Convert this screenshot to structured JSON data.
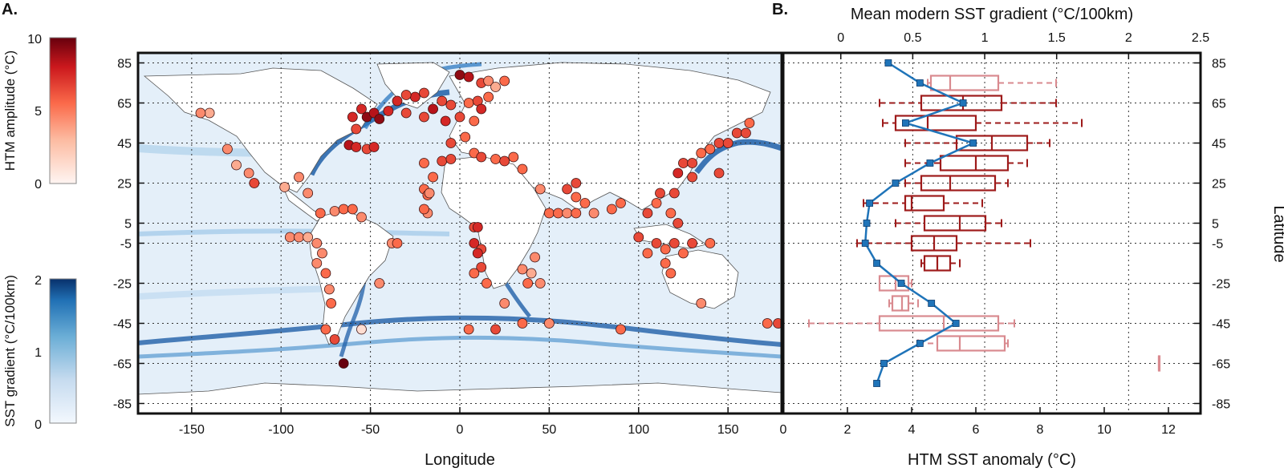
{
  "panel_a_letter": "A.",
  "panel_b_letter": "B.",
  "colors": {
    "htm_scale": [
      "#fff5f2",
      "#fcbba1",
      "#fb6a4a",
      "#cb181d",
      "#67000d"
    ],
    "sst_scale": [
      "#f3f8fe",
      "#c6dbef",
      "#6baed6",
      "#2171b5",
      "#08306b"
    ],
    "box_dark": "#9e1b1b",
    "box_light": "#d98a8f",
    "gradient_line": "#1f74b9",
    "land": "#ffffff",
    "ocean": "#e4eff9"
  },
  "colorbar_htm": {
    "label": "HTM amplitude (°C)",
    "ticks": [
      "10",
      "5",
      "0"
    ],
    "min": 0,
    "max": 10
  },
  "colorbar_sst": {
    "label": "SST gradient (°C/100km)",
    "ticks": [
      "2",
      "1",
      "0"
    ],
    "min": 0,
    "max": 2
  },
  "chart_data": [
    {
      "type": "scatter",
      "xlabel": "Longitude",
      "ylabel": "",
      "xlim": [
        -180,
        180
      ],
      "ylim": [
        -90,
        90
      ],
      "xticks": [
        "-150",
        "-100",
        "-50",
        "0",
        "50",
        "100",
        "150"
      ],
      "yticks": [
        "85",
        "65",
        "45",
        "25",
        "5",
        "-5",
        "-25",
        "-45",
        "-65",
        "-85"
      ],
      "grid": true,
      "points": [
        {
          "lon": 0,
          "lat": 79,
          "htm": 9
        },
        {
          "lon": 5,
          "lat": 78,
          "htm": 8
        },
        {
          "lon": 12,
          "lat": 75,
          "htm": 6
        },
        {
          "lon": 16,
          "lat": 76,
          "htm": 4
        },
        {
          "lon": 20,
          "lat": 73,
          "htm": 3
        },
        {
          "lon": 25,
          "lat": 76,
          "htm": 5
        },
        {
          "lon": -20,
          "lat": 70,
          "htm": 6
        },
        {
          "lon": -25,
          "lat": 68,
          "htm": 7
        },
        {
          "lon": -30,
          "lat": 69,
          "htm": 6
        },
        {
          "lon": -35,
          "lat": 66,
          "htm": 7
        },
        {
          "lon": -10,
          "lat": 66,
          "htm": 6
        },
        {
          "lon": -15,
          "lat": 62,
          "htm": 8
        },
        {
          "lon": -5,
          "lat": 64,
          "htm": 6
        },
        {
          "lon": 5,
          "lat": 65,
          "htm": 5
        },
        {
          "lon": 10,
          "lat": 66,
          "htm": 6
        },
        {
          "lon": 12,
          "lat": 62,
          "htm": 7
        },
        {
          "lon": 16,
          "lat": 68,
          "htm": 5
        },
        {
          "lon": -55,
          "lat": 62,
          "htm": 7
        },
        {
          "lon": -52,
          "lat": 58,
          "htm": 9
        },
        {
          "lon": -48,
          "lat": 60,
          "htm": 8
        },
        {
          "lon": -45,
          "lat": 57,
          "htm": 9
        },
        {
          "lon": -60,
          "lat": 58,
          "htm": 7
        },
        {
          "lon": -58,
          "lat": 52,
          "htm": 6
        },
        {
          "lon": 0,
          "lat": 58,
          "htm": 6
        },
        {
          "lon": -8,
          "lat": 56,
          "htm": 7
        },
        {
          "lon": 8,
          "lat": 56,
          "htm": 5
        },
        {
          "lon": -20,
          "lat": 58,
          "htm": 6
        },
        {
          "lon": -30,
          "lat": 60,
          "htm": 6
        },
        {
          "lon": -40,
          "lat": 61,
          "htm": 7
        },
        {
          "lon": -62,
          "lat": 44,
          "htm": 8
        },
        {
          "lon": -58,
          "lat": 43,
          "htm": 7
        },
        {
          "lon": -52,
          "lat": 42,
          "htm": 6
        },
        {
          "lon": -48,
          "lat": 43,
          "htm": 7
        },
        {
          "lon": -140,
          "lat": 60,
          "htm": 3
        },
        {
          "lon": -145,
          "lat": 60,
          "htm": 4
        },
        {
          "lon": -130,
          "lat": 42,
          "htm": 4
        },
        {
          "lon": -125,
          "lat": 34,
          "htm": 3
        },
        {
          "lon": -118,
          "lat": 30,
          "htm": 4
        },
        {
          "lon": -115,
          "lat": 25,
          "htm": 6
        },
        {
          "lon": -90,
          "lat": 28,
          "htm": 4
        },
        {
          "lon": -98,
          "lat": 23,
          "htm": 3
        },
        {
          "lon": -85,
          "lat": 20,
          "htm": 4
        },
        {
          "lon": -78,
          "lat": 10,
          "htm": 5
        },
        {
          "lon": -70,
          "lat": 11,
          "htm": 4
        },
        {
          "lon": -65,
          "lat": 12,
          "htm": 5
        },
        {
          "lon": -60,
          "lat": 12,
          "htm": 5
        },
        {
          "lon": -55,
          "lat": 8,
          "htm": 4
        },
        {
          "lon": -95,
          "lat": -2,
          "htm": 4
        },
        {
          "lon": -90,
          "lat": -2,
          "htm": 4
        },
        {
          "lon": -85,
          "lat": -2,
          "htm": 3
        },
        {
          "lon": -80,
          "lat": -5,
          "htm": 4
        },
        {
          "lon": -77,
          "lat": -10,
          "htm": 4
        },
        {
          "lon": -80,
          "lat": -15,
          "htm": 4
        },
        {
          "lon": -75,
          "lat": -20,
          "htm": 5
        },
        {
          "lon": -73,
          "lat": -28,
          "htm": 4
        },
        {
          "lon": -72,
          "lat": -35,
          "htm": 5
        },
        {
          "lon": -75,
          "lat": -48,
          "htm": 5
        },
        {
          "lon": -70,
          "lat": -53,
          "htm": 6
        },
        {
          "lon": -38,
          "lat": -5,
          "htm": 4
        },
        {
          "lon": -35,
          "lat": -5,
          "htm": 5
        },
        {
          "lon": -45,
          "lat": -25,
          "htm": 4
        },
        {
          "lon": -65,
          "lat": -65,
          "htm": 10
        },
        {
          "lon": -20,
          "lat": 35,
          "htm": 5
        },
        {
          "lon": -15,
          "lat": 28,
          "htm": 5
        },
        {
          "lon": -10,
          "lat": 36,
          "htm": 6
        },
        {
          "lon": -5,
          "lat": 37,
          "htm": 6
        },
        {
          "lon": 8,
          "lat": 40,
          "htm": 5
        },
        {
          "lon": 12,
          "lat": 38,
          "htm": 6
        },
        {
          "lon": 20,
          "lat": 37,
          "htm": 5
        },
        {
          "lon": 25,
          "lat": 36,
          "htm": 6
        },
        {
          "lon": 30,
          "lat": 38,
          "htm": 5
        },
        {
          "lon": 35,
          "lat": 32,
          "htm": 5
        },
        {
          "lon": 3,
          "lat": 48,
          "htm": 5
        },
        {
          "lon": -5,
          "lat": 45,
          "htm": 6
        },
        {
          "lon": -20,
          "lat": 22,
          "htm": 5
        },
        {
          "lon": -18,
          "lat": 19,
          "htm": 5
        },
        {
          "lon": -17,
          "lat": 20,
          "htm": 4
        },
        {
          "lon": -18,
          "lat": 10,
          "htm": 4
        },
        {
          "lon": -20,
          "lat": 12,
          "htm": 5
        },
        {
          "lon": 8,
          "lat": 3,
          "htm": 6
        },
        {
          "lon": 10,
          "lat": 3,
          "htm": 7
        },
        {
          "lon": 8,
          "lat": -5,
          "htm": 7
        },
        {
          "lon": 12,
          "lat": -8,
          "htm": 6
        },
        {
          "lon": 10,
          "lat": -10,
          "htm": 7
        },
        {
          "lon": 12,
          "lat": -17,
          "htm": 6
        },
        {
          "lon": 15,
          "lat": -25,
          "htm": 5
        },
        {
          "lon": 8,
          "lat": -20,
          "htm": 5
        },
        {
          "lon": 25,
          "lat": -35,
          "htm": 4
        },
        {
          "lon": 35,
          "lat": -45,
          "htm": 5
        },
        {
          "lon": 20,
          "lat": -48,
          "htm": 6
        },
        {
          "lon": 5,
          "lat": -48,
          "htm": 5
        },
        {
          "lon": 50,
          "lat": -45,
          "htm": 4
        },
        {
          "lon": 90,
          "lat": -48,
          "htm": 5
        },
        {
          "lon": -55,
          "lat": -48,
          "htm": 1
        },
        {
          "lon": 35,
          "lat": -18,
          "htm": 4
        },
        {
          "lon": 40,
          "lat": -20,
          "htm": 3
        },
        {
          "lon": 42,
          "lat": -12,
          "htm": 4
        },
        {
          "lon": 38,
          "lat": -25,
          "htm": 5
        },
        {
          "lon": 45,
          "lat": -25,
          "htm": 4
        },
        {
          "lon": 50,
          "lat": 10,
          "htm": 5
        },
        {
          "lon": 55,
          "lat": 10,
          "htm": 5
        },
        {
          "lon": 60,
          "lat": 10,
          "htm": 4
        },
        {
          "lon": 65,
          "lat": 10,
          "htm": 5
        },
        {
          "lon": 45,
          "lat": 22,
          "htm": 4
        },
        {
          "lon": 60,
          "lat": 22,
          "htm": 6
        },
        {
          "lon": 65,
          "lat": 18,
          "htm": 5
        },
        {
          "lon": 70,
          "lat": 15,
          "htm": 5
        },
        {
          "lon": 75,
          "lat": 10,
          "htm": 4
        },
        {
          "lon": 90,
          "lat": 15,
          "htm": 5
        },
        {
          "lon": 85,
          "lat": 12,
          "htm": 5
        },
        {
          "lon": 65,
          "lat": 25,
          "htm": 6
        },
        {
          "lon": 105,
          "lat": 10,
          "htm": 6
        },
        {
          "lon": 110,
          "lat": 15,
          "htm": 5
        },
        {
          "lon": 112,
          "lat": 20,
          "htm": 6
        },
        {
          "lon": 120,
          "lat": 20,
          "htm": 6
        },
        {
          "lon": 118,
          "lat": 10,
          "htm": 5
        },
        {
          "lon": 122,
          "lat": 5,
          "htm": 6
        },
        {
          "lon": 110,
          "lat": -5,
          "htm": 6
        },
        {
          "lon": 115,
          "lat": -8,
          "htm": 5
        },
        {
          "lon": 120,
          "lat": -5,
          "htm": 6
        },
        {
          "lon": 125,
          "lat": -10,
          "htm": 5
        },
        {
          "lon": 130,
          "lat": -5,
          "htm": 6
        },
        {
          "lon": 100,
          "lat": -2,
          "htm": 6
        },
        {
          "lon": 105,
          "lat": -10,
          "htm": 5
        },
        {
          "lon": 118,
          "lat": -20,
          "htm": 5
        },
        {
          "lon": 115,
          "lat": -15,
          "htm": 5
        },
        {
          "lon": 140,
          "lat": -5,
          "htm": 5
        },
        {
          "lon": 135,
          "lat": -35,
          "htm": 4
        },
        {
          "lon": 125,
          "lat": 35,
          "htm": 6
        },
        {
          "lon": 130,
          "lat": 35,
          "htm": 6
        },
        {
          "lon": 135,
          "lat": 40,
          "htm": 5
        },
        {
          "lon": 140,
          "lat": 42,
          "htm": 5
        },
        {
          "lon": 145,
          "lat": 45,
          "htm": 6
        },
        {
          "lon": 150,
          "lat": 45,
          "htm": 6
        },
        {
          "lon": 155,
          "lat": 50,
          "htm": 6
        },
        {
          "lon": 160,
          "lat": 50,
          "htm": 6
        },
        {
          "lon": 162,
          "lat": 55,
          "htm": 5
        },
        {
          "lon": 122,
          "lat": 30,
          "htm": 7
        },
        {
          "lon": 130,
          "lat": 28,
          "htm": 6
        },
        {
          "lon": 145,
          "lat": 30,
          "htm": 6
        },
        {
          "lon": 172,
          "lat": -45,
          "htm": 5
        },
        {
          "lon": 178,
          "lat": -45,
          "htm": 6
        }
      ]
    },
    {
      "type": "box",
      "xlabel": "HTM SST anomaly (°C)",
      "ylabel": "Latitude",
      "xlim": [
        0,
        13
      ],
      "ylim": [
        -90,
        90
      ],
      "xticks": [
        "0",
        "2",
        "4",
        "6",
        "8",
        "10",
        "12"
      ],
      "yticks": [
        "85",
        "65",
        "45",
        "25",
        "5",
        "-5",
        "-25",
        "-45",
        "-65",
        "-85"
      ],
      "grid": true,
      "boxes": [
        {
          "lat": 75,
          "min": 4.5,
          "q1": 4.6,
          "median": 5.2,
          "q3": 6.7,
          "max": 8.5,
          "tone": "light"
        },
        {
          "lat": 65,
          "min": 3.0,
          "q1": 4.3,
          "median": 5.6,
          "q3": 6.8,
          "max": 8.5,
          "tone": "dark"
        },
        {
          "lat": 55,
          "min": 3.1,
          "q1": 3.5,
          "median": 4.5,
          "q3": 6.0,
          "max": 9.3,
          "tone": "dark"
        },
        {
          "lat": 45,
          "min": 3.8,
          "q1": 5.4,
          "median": 6.5,
          "q3": 7.6,
          "max": 8.3,
          "tone": "dark"
        },
        {
          "lat": 35,
          "min": 3.8,
          "q1": 4.9,
          "median": 6.0,
          "q3": 7.0,
          "max": 7.6,
          "tone": "dark"
        },
        {
          "lat": 25,
          "min": 3.8,
          "q1": 4.3,
          "median": 5.2,
          "q3": 6.6,
          "max": 7.0,
          "tone": "dark"
        },
        {
          "lat": 15,
          "min": 2.5,
          "q1": 3.8,
          "median": 4.0,
          "q3": 5.0,
          "max": 6.2,
          "tone": "dark"
        },
        {
          "lat": 5,
          "min": 3.5,
          "q1": 4.4,
          "median": 5.5,
          "q3": 6.3,
          "max": 6.8,
          "tone": "dark"
        },
        {
          "lat": -5,
          "min": 2.3,
          "q1": 4.0,
          "median": 4.7,
          "q3": 5.4,
          "max": 7.7,
          "tone": "dark"
        },
        {
          "lat": -15,
          "min": 4.3,
          "q1": 4.4,
          "median": 4.8,
          "q3": 5.2,
          "max": 5.5,
          "tone": "dark"
        },
        {
          "lat": -25,
          "min": 3.0,
          "q1": 3.0,
          "median": 3.5,
          "q3": 3.9,
          "max": 4.0,
          "tone": "light"
        },
        {
          "lat": -35,
          "min": 3.3,
          "q1": 3.4,
          "median": 3.7,
          "q3": 3.9,
          "max": 4.2,
          "tone": "light"
        },
        {
          "lat": -45,
          "min": 0.8,
          "q1": 3.0,
          "median": 5.0,
          "q3": 6.7,
          "max": 7.2,
          "tone": "light"
        },
        {
          "lat": -55,
          "min": 4.2,
          "q1": 4.8,
          "median": 5.5,
          "q3": 6.9,
          "max": 7.0,
          "tone": "light"
        },
        {
          "lat": -65,
          "min": 11.7,
          "q1": 11.7,
          "median": 11.7,
          "q3": 11.7,
          "max": 11.7,
          "tone": "light"
        }
      ]
    },
    {
      "type": "line",
      "xlabel": "Mean modern SST gradient (°C/100km)",
      "xlim": [
        -0.4,
        2.5
      ],
      "xticks": [
        "0",
        "0.5",
        "1",
        "1.5",
        "2",
        "2.5"
      ],
      "points": [
        {
          "lat": 85,
          "value": 0.33
        },
        {
          "lat": 75,
          "value": 0.55
        },
        {
          "lat": 65,
          "value": 0.85
        },
        {
          "lat": 55,
          "value": 0.45
        },
        {
          "lat": 45,
          "value": 0.92
        },
        {
          "lat": 35,
          "value": 0.62
        },
        {
          "lat": 25,
          "value": 0.38
        },
        {
          "lat": 15,
          "value": 0.2
        },
        {
          "lat": 5,
          "value": 0.18
        },
        {
          "lat": -5,
          "value": 0.17
        },
        {
          "lat": -15,
          "value": 0.25
        },
        {
          "lat": -25,
          "value": 0.42
        },
        {
          "lat": -35,
          "value": 0.63
        },
        {
          "lat": -45,
          "value": 0.8
        },
        {
          "lat": -55,
          "value": 0.55
        },
        {
          "lat": -65,
          "value": 0.3
        },
        {
          "lat": -75,
          "value": 0.25
        }
      ]
    }
  ]
}
